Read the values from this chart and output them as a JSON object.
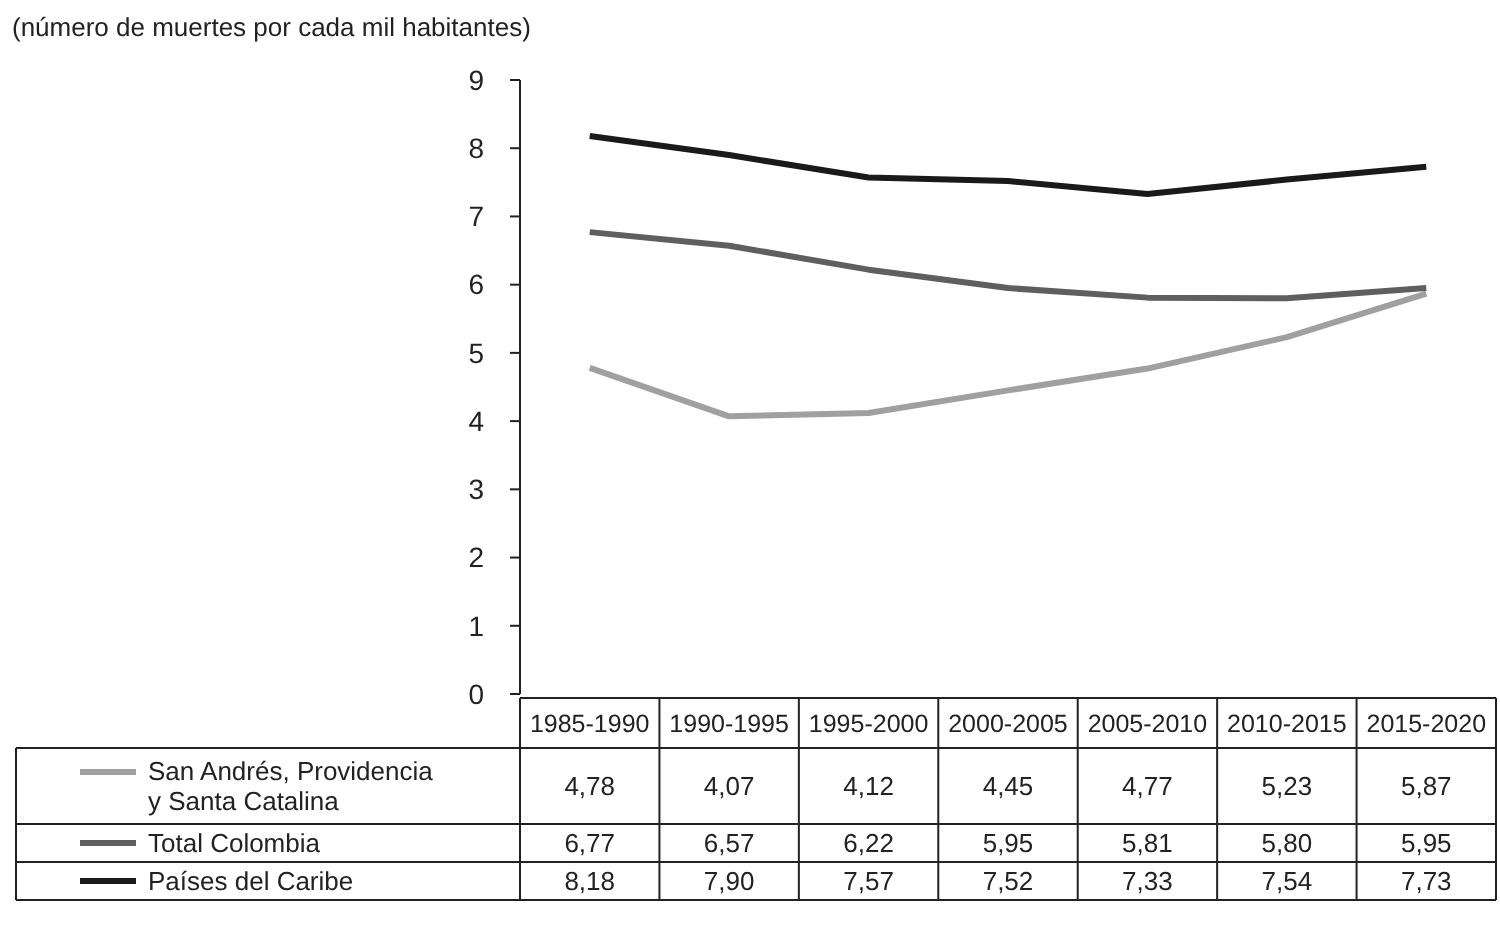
{
  "chart_data": {
    "type": "line",
    "title": "(número de muertes por cada mil habitantes)",
    "categories": [
      "1985-1990",
      "1990-1995",
      "1995-2000",
      "2000-2005",
      "2005-2010",
      "2010-2015",
      "2015-2020"
    ],
    "series": [
      {
        "name": "San Andrés, Providencia y Santa Catalina",
        "color": "#a0a0a0",
        "values": [
          4.78,
          4.07,
          4.12,
          4.45,
          4.77,
          5.23,
          5.87
        ],
        "value_labels": [
          "4,78",
          "4,07",
          "4,12",
          "4,45",
          "4,77",
          "5,23",
          "5,87"
        ]
      },
      {
        "name": "Total Colombia",
        "color": "#5f5f5f",
        "values": [
          6.77,
          6.57,
          6.22,
          5.95,
          5.81,
          5.8,
          5.95
        ],
        "value_labels": [
          "6,77",
          "6,57",
          "6,22",
          "5,95",
          "5,81",
          "5,80",
          "5,95"
        ]
      },
      {
        "name": "Países del Caribe",
        "color": "#1a1a1a",
        "values": [
          8.18,
          7.9,
          7.57,
          7.52,
          7.33,
          7.54,
          7.73
        ],
        "value_labels": [
          "8,18",
          "7,90",
          "7,57",
          "7,52",
          "7,33",
          "7,54",
          "7,73"
        ]
      }
    ],
    "ylim": [
      0,
      9
    ],
    "yticks": [
      0,
      1,
      2,
      3,
      4,
      5,
      6,
      7,
      8,
      9
    ],
    "legend": "bottom",
    "grid": false,
    "marker": "none",
    "line_style": "solid"
  }
}
